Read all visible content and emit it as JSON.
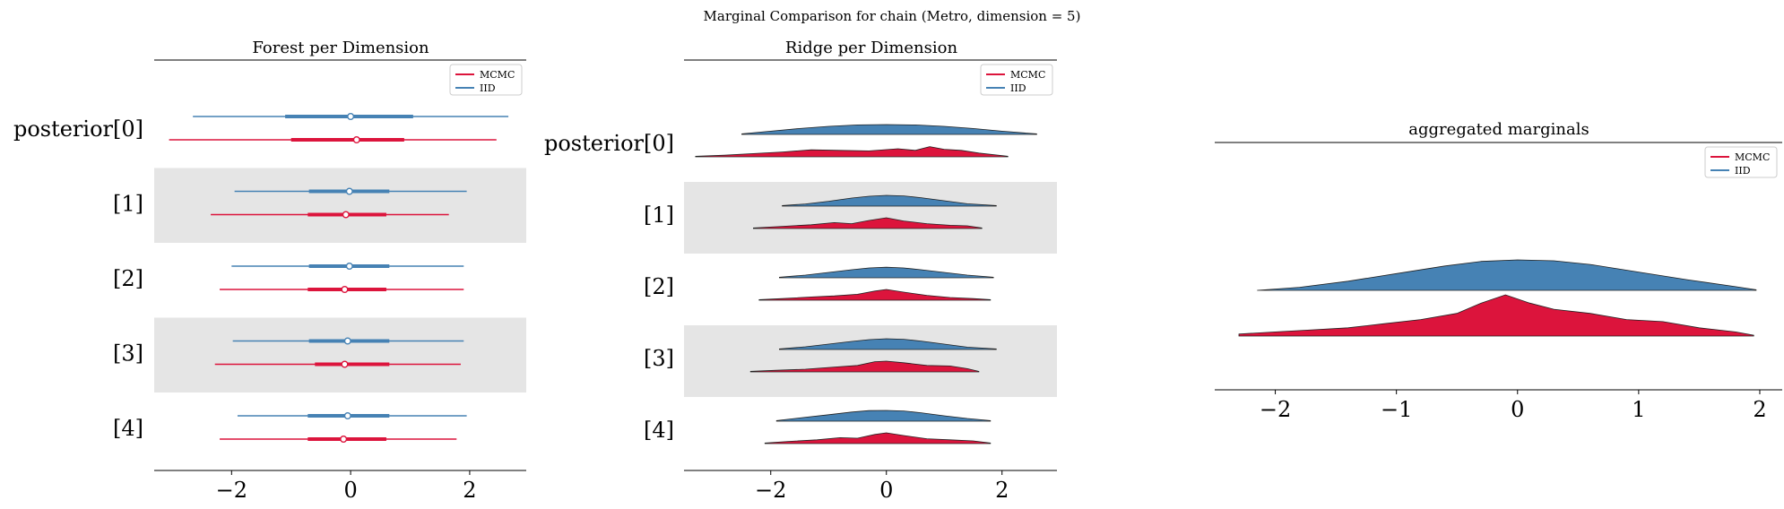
{
  "suptitle": "Marginal Comparison for chain (Metro, dimension = 5)",
  "colors": {
    "mcmc": "#dc143c",
    "iid": "#4682b4",
    "band": "#e5e5e5"
  },
  "chart_data": [
    {
      "type": "forest",
      "title": "Forest per Dimension",
      "xlim": [
        -3.3,
        2.95
      ],
      "xticks": [
        -2,
        0,
        2
      ],
      "xtick_labels": [
        "−2",
        "0",
        "2"
      ],
      "row_labels": [
        "posterior[0]",
        "[1]",
        "[2]",
        "[3]",
        "[4]"
      ],
      "legend": {
        "placement": "top-right",
        "entries": [
          "MCMC",
          "IID"
        ]
      },
      "series": [
        {
          "name": "IID",
          "color": "#4682b4",
          "rows": [
            {
              "low": -2.65,
              "q1": -1.1,
              "median": 0.0,
              "q3": 1.05,
              "high": 2.65
            },
            {
              "low": -1.95,
              "q1": -0.7,
              "median": -0.02,
              "q3": 0.65,
              "high": 1.95
            },
            {
              "low": -2.0,
              "q1": -0.7,
              "median": -0.02,
              "q3": 0.65,
              "high": 1.9
            },
            {
              "low": -1.98,
              "q1": -0.7,
              "median": -0.05,
              "q3": 0.65,
              "high": 1.9
            },
            {
              "low": -1.9,
              "q1": -0.72,
              "median": -0.05,
              "q3": 0.65,
              "high": 1.95
            }
          ]
        },
        {
          "name": "MCMC",
          "color": "#dc143c",
          "rows": [
            {
              "low": -3.05,
              "q1": -1.0,
              "median": 0.1,
              "q3": 0.9,
              "high": 2.45
            },
            {
              "low": -2.35,
              "q1": -0.72,
              "median": -0.08,
              "q3": 0.6,
              "high": 1.65
            },
            {
              "low": -2.2,
              "q1": -0.72,
              "median": -0.1,
              "q3": 0.6,
              "high": 1.9
            },
            {
              "low": -2.28,
              "q1": -0.6,
              "median": -0.1,
              "q3": 0.65,
              "high": 1.85
            },
            {
              "low": -2.2,
              "q1": -0.72,
              "median": -0.12,
              "q3": 0.6,
              "high": 1.78
            }
          ]
        }
      ]
    },
    {
      "type": "ridge",
      "title": "Ridge per Dimension",
      "xlim": [
        -3.5,
        2.95
      ],
      "xticks": [
        -2,
        0,
        2
      ],
      "xtick_labels": [
        "−2",
        "0",
        "2"
      ],
      "row_labels": [
        "posterior[0]",
        "[1]",
        "[2]",
        "[3]",
        "[4]"
      ],
      "legend": {
        "placement": "top-right",
        "entries": [
          "MCMC",
          "IID"
        ]
      },
      "series": [
        {
          "name": "IID",
          "color": "#4682b4",
          "rows": [
            {
              "x": [
                -2.5,
                -2.0,
                -1.5,
                -1.0,
                -0.5,
                0.0,
                0.5,
                1.0,
                1.5,
                2.0,
                2.6
              ],
              "y": [
                0.05,
                0.3,
                0.55,
                0.75,
                0.88,
                0.92,
                0.88,
                0.75,
                0.55,
                0.3,
                0.05
              ]
            },
            {
              "x": [
                -1.8,
                -1.4,
                -1.0,
                -0.6,
                -0.3,
                0.0,
                0.3,
                0.6,
                1.0,
                1.4,
                1.9
              ],
              "y": [
                0.05,
                0.2,
                0.45,
                0.75,
                0.92,
                1.0,
                0.95,
                0.78,
                0.5,
                0.22,
                0.05
              ]
            },
            {
              "x": [
                -1.85,
                -1.4,
                -1.0,
                -0.6,
                -0.3,
                0.0,
                0.3,
                0.6,
                1.0,
                1.4,
                1.85
              ],
              "y": [
                0.05,
                0.25,
                0.5,
                0.75,
                0.92,
                0.98,
                0.92,
                0.75,
                0.5,
                0.25,
                0.05
              ]
            },
            {
              "x": [
                -1.85,
                -1.4,
                -1.0,
                -0.6,
                -0.3,
                0.0,
                0.3,
                0.6,
                1.0,
                1.4,
                1.9
              ],
              "y": [
                0.05,
                0.25,
                0.5,
                0.75,
                0.92,
                1.0,
                0.95,
                0.78,
                0.5,
                0.22,
                0.05
              ]
            },
            {
              "x": [
                -1.9,
                -1.5,
                -1.0,
                -0.6,
                -0.3,
                0.0,
                0.3,
                0.6,
                1.0,
                1.4,
                1.8
              ],
              "y": [
                0.05,
                0.3,
                0.6,
                0.85,
                0.98,
                1.0,
                0.95,
                0.78,
                0.5,
                0.25,
                0.05
              ]
            }
          ]
        },
        {
          "name": "MCMC",
          "color": "#dc143c",
          "rows": [
            {
              "x": [
                -3.3,
                -2.8,
                -2.3,
                -1.8,
                -1.3,
                -0.8,
                -0.3,
                0.2,
                0.5,
                0.75,
                1.0,
                1.3,
                1.6,
                2.1
              ],
              "y": [
                0.05,
                0.15,
                0.3,
                0.45,
                0.65,
                0.6,
                0.55,
                0.75,
                0.6,
                0.95,
                0.7,
                0.6,
                0.35,
                0.05
              ]
            },
            {
              "x": [
                -2.3,
                -1.8,
                -1.3,
                -0.9,
                -0.6,
                -0.3,
                0.0,
                0.3,
                0.7,
                1.1,
                1.4,
                1.65
              ],
              "y": [
                0.05,
                0.2,
                0.35,
                0.55,
                0.45,
                0.75,
                1.0,
                0.7,
                0.45,
                0.3,
                0.25,
                0.05
              ]
            },
            {
              "x": [
                -2.2,
                -1.8,
                -1.3,
                -0.9,
                -0.5,
                -0.2,
                0.0,
                0.3,
                0.7,
                1.1,
                1.5,
                1.8
              ],
              "y": [
                0.05,
                0.15,
                0.3,
                0.4,
                0.55,
                0.85,
                1.0,
                0.75,
                0.45,
                0.25,
                0.15,
                0.05
              ]
            },
            {
              "x": [
                -2.35,
                -1.9,
                -1.4,
                -0.9,
                -0.5,
                -0.2,
                0.0,
                0.3,
                0.7,
                1.1,
                1.4,
                1.6
              ],
              "y": [
                0.05,
                0.15,
                0.25,
                0.45,
                0.6,
                0.95,
                1.0,
                0.85,
                0.6,
                0.55,
                0.3,
                0.05
              ]
            },
            {
              "x": [
                -2.1,
                -1.7,
                -1.2,
                -0.8,
                -0.5,
                -0.2,
                0.0,
                0.3,
                0.7,
                1.1,
                1.5,
                1.8
              ],
              "y": [
                0.05,
                0.2,
                0.35,
                0.55,
                0.5,
                0.85,
                1.0,
                0.75,
                0.45,
                0.35,
                0.25,
                0.05
              ]
            }
          ]
        }
      ]
    },
    {
      "type": "area",
      "title": "aggregated marginals",
      "xlim": [
        -2.5,
        2.2
      ],
      "xticks": [
        -2,
        -1,
        0,
        1,
        2
      ],
      "xtick_labels": [
        "−2",
        "−1",
        "0",
        "1",
        "2"
      ],
      "legend": {
        "placement": "top-right",
        "entries": [
          "MCMC",
          "IID"
        ]
      },
      "series": [
        {
          "name": "IID",
          "color": "#4682b4",
          "x": [
            -2.15,
            -1.8,
            -1.4,
            -1.0,
            -0.6,
            -0.3,
            0.0,
            0.3,
            0.6,
            1.0,
            1.4,
            1.8,
            1.97
          ],
          "y": [
            0.0,
            0.1,
            0.3,
            0.55,
            0.8,
            0.95,
            1.0,
            0.97,
            0.85,
            0.6,
            0.35,
            0.12,
            0.02
          ]
        },
        {
          "name": "MCMC",
          "color": "#dc143c",
          "x": [
            -2.3,
            -2.0,
            -1.7,
            -1.4,
            -1.1,
            -0.8,
            -0.5,
            -0.3,
            -0.1,
            0.1,
            0.3,
            0.6,
            0.9,
            1.2,
            1.5,
            1.8,
            1.95
          ],
          "y": [
            0.05,
            0.1,
            0.15,
            0.2,
            0.3,
            0.4,
            0.55,
            0.8,
            1.0,
            0.8,
            0.65,
            0.55,
            0.4,
            0.35,
            0.2,
            0.1,
            0.02
          ]
        }
      ]
    }
  ]
}
